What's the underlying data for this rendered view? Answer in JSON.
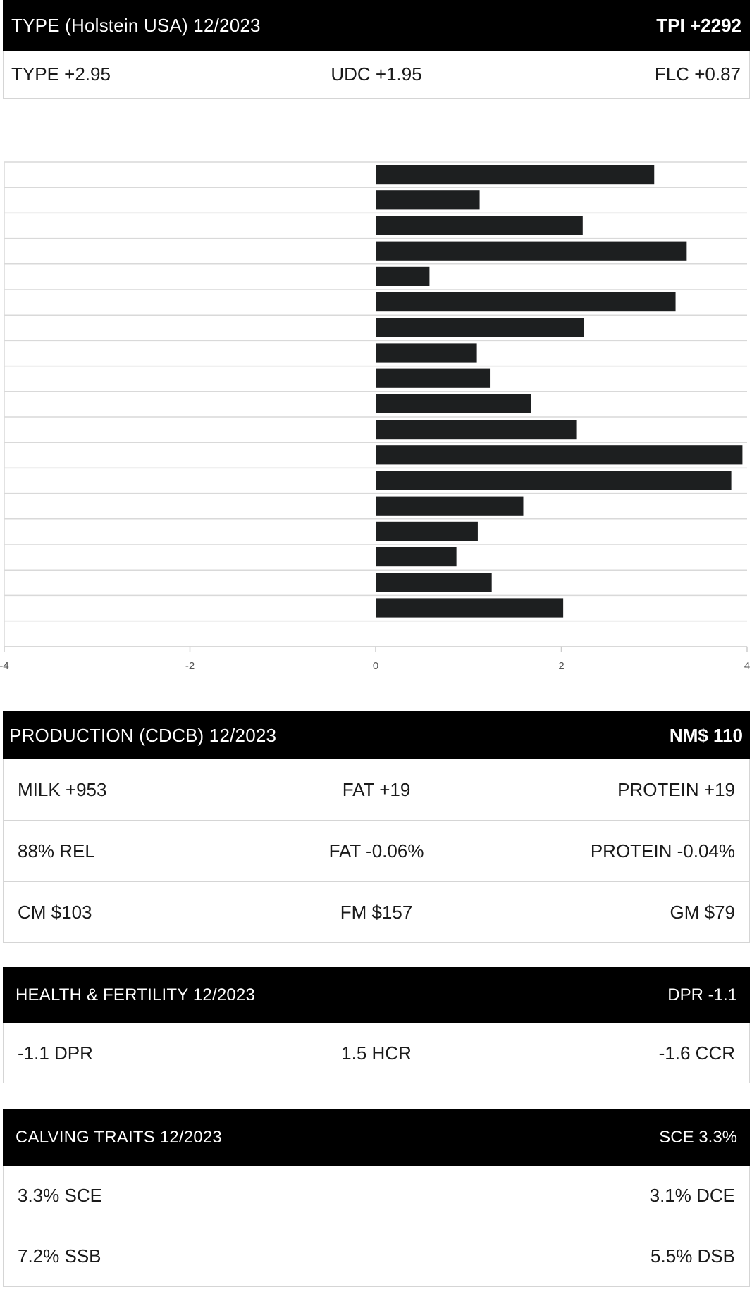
{
  "type_section": {
    "title": "TYPE (Holstein USA) 12/2023",
    "tpi": "TPI +2292",
    "type": "TYPE +2.95",
    "udc": "UDC +1.95",
    "flc": "FLC +0.87"
  },
  "chart_data": {
    "type": "bar",
    "orientation": "horizontal",
    "values": [
      3.0,
      1.12,
      2.23,
      3.35,
      0.58,
      3.23,
      2.24,
      1.09,
      1.23,
      1.67,
      2.16,
      3.95,
      3.83,
      1.59,
      1.1,
      0.87,
      1.25,
      2.02
    ],
    "xlim": [
      -4,
      4
    ],
    "xticks": [
      "-4",
      "-2",
      "0",
      "2",
      "4"
    ],
    "grid": true,
    "bar_color": "#1d1f20"
  },
  "production": {
    "title": "PRODUCTION (CDCB) 12/2023",
    "nm": "NM$ 110",
    "rows": [
      [
        "MILK +953",
        "FAT +19",
        "PROTEIN +19"
      ],
      [
        "88% REL",
        "FAT -0.06%",
        "PROTEIN -0.04%"
      ],
      [
        "CM $103",
        "FM $157",
        "GM $79"
      ]
    ]
  },
  "health": {
    "title": "HEALTH & FERTILITY 12/2023",
    "dpr": "DPR -1.1",
    "row": [
      "-1.1 DPR",
      "1.5 HCR",
      "-1.6 CCR"
    ]
  },
  "calving": {
    "title": "CALVING TRAITS 12/2023",
    "sce": "SCE 3.3%",
    "rows": [
      [
        "3.3% SCE",
        "3.1% DCE"
      ],
      [
        "7.2% SSB",
        "5.5% DSB"
      ]
    ]
  }
}
